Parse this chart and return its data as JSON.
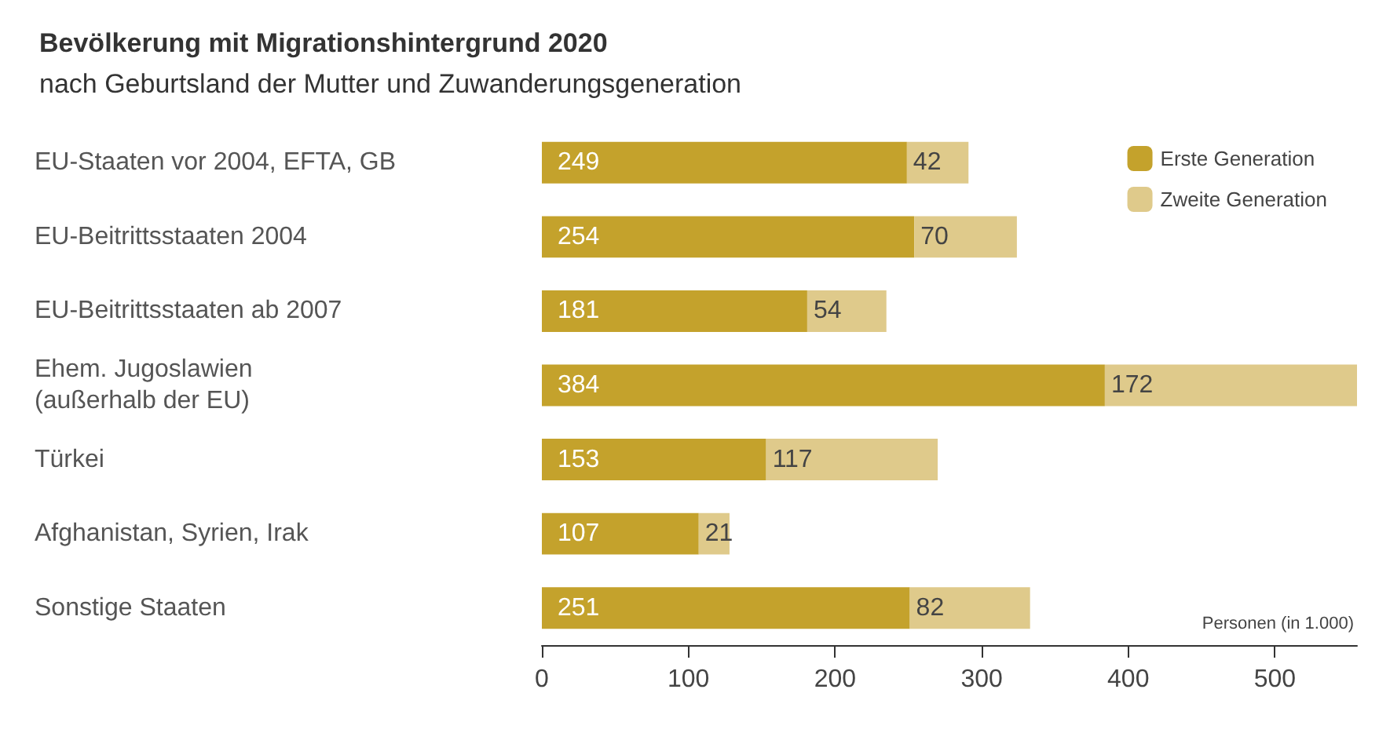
{
  "chart_data": {
    "type": "bar",
    "orientation": "horizontal",
    "stacked": true,
    "title": "Bevölkerung mit Migrationshintergrund 2020",
    "subtitle": "nach Geburtsland der Mutter und Zuwanderungsgeneration",
    "categories": [
      "EU-Staaten vor 2004, EFTA, GB",
      "EU-Beitrittsstaaten 2004",
      "EU-Beitrittsstaaten ab 2007",
      "Ehem. Jugoslawien\n(außerhalb der EU)",
      "Türkei",
      "Afghanistan, Syrien, Irak",
      "Sonstige Staaten"
    ],
    "series": [
      {
        "name": "Erste Generation",
        "color": "#c4a22c",
        "values": [
          249,
          254,
          181,
          384,
          153,
          107,
          251
        ]
      },
      {
        "name": "Zweite Generation",
        "color": "#dfca8b",
        "values": [
          42,
          70,
          54,
          172,
          117,
          21,
          82
        ]
      }
    ],
    "xlim": [
      0,
      556
    ],
    "xticks": [
      0,
      100,
      200,
      300,
      400,
      500
    ],
    "data_labels": true,
    "legend": "top right",
    "grid": false,
    "annotations": [
      "Personen (in 1.000)"
    ]
  }
}
